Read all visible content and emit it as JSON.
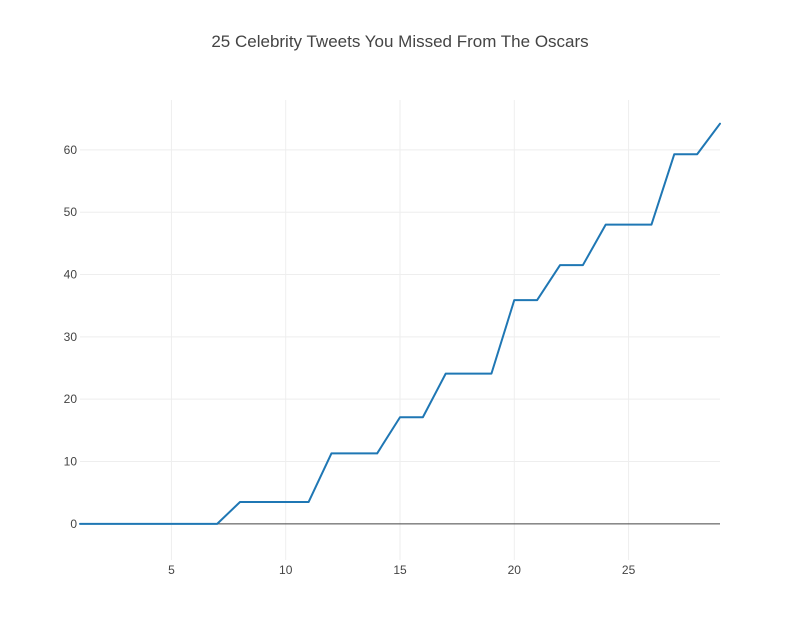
{
  "chart_data": {
    "type": "line",
    "title": "25 Celebrity Tweets You Missed From The Oscars",
    "xlabel": "",
    "ylabel": "",
    "xlim": [
      1,
      29
    ],
    "ylim": [
      -5.8,
      68
    ],
    "grid": true,
    "legend": "none",
    "x_ticks": [
      5,
      10,
      15,
      20,
      25
    ],
    "y_ticks": [
      0,
      10,
      20,
      30,
      40,
      50,
      60
    ],
    "series": [
      {
        "color": "#1f77b4",
        "x": [
          1,
          2,
          3,
          4,
          5,
          6,
          7,
          8,
          9,
          10,
          11,
          12,
          13,
          14,
          15,
          16,
          17,
          18,
          19,
          20,
          21,
          22,
          23,
          24,
          25,
          26,
          27,
          28,
          29
        ],
        "y": [
          0,
          0,
          0,
          0,
          0,
          0,
          0,
          3.5,
          3.5,
          3.5,
          3.5,
          11.3,
          11.3,
          11.3,
          17.1,
          17.1,
          24.1,
          24.1,
          24.1,
          35.9,
          35.9,
          41.5,
          41.5,
          48.0,
          48.0,
          48.0,
          59.3,
          59.3,
          64.2
        ]
      }
    ]
  }
}
